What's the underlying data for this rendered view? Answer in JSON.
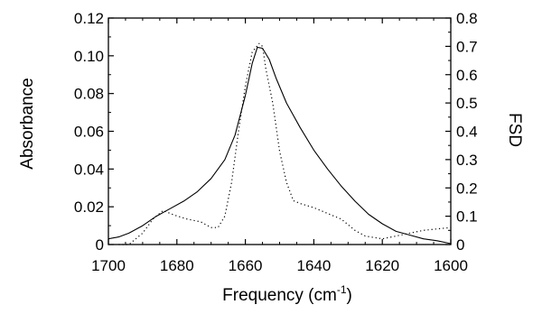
{
  "chart_data": {
    "type": "line",
    "xlabel": "Frequency (cm",
    "xlabel_sup": "-1",
    "xlabel_close": ")",
    "ylabel_left": "Absorbance",
    "ylabel_right": "FSD",
    "xlim": [
      1700,
      1600
    ],
    "ylim_left": [
      0,
      0.12
    ],
    "ylim_right": [
      0,
      0.8
    ],
    "x_ticks": [
      "1700",
      "1680",
      "1660",
      "1640",
      "1620",
      "1600"
    ],
    "x_tick_values": [
      1700,
      1680,
      1660,
      1640,
      1620,
      1600
    ],
    "y_left_ticks": [
      "0",
      "0.02",
      "0.04",
      "0.06",
      "0.08",
      "0.10",
      "0.12"
    ],
    "y_left_tick_values": [
      0,
      0.02,
      0.04,
      0.06,
      0.08,
      0.1,
      0.12
    ],
    "y_right_ticks": [
      "0",
      "0.1",
      "0.2",
      "0.3",
      "0.4",
      "0.5",
      "0.6",
      "0.7",
      "0.8"
    ],
    "y_right_tick_values": [
      0,
      0.1,
      0.2,
      0.3,
      0.4,
      0.5,
      0.6,
      0.7,
      0.8
    ],
    "series": [
      {
        "axis": "left",
        "style": "solid",
        "color": "#000000",
        "x": [
          1700,
          1697,
          1694,
          1690,
          1686,
          1682,
          1678,
          1674,
          1670,
          1666,
          1663,
          1660,
          1658,
          1656.5,
          1655,
          1653,
          1651,
          1648,
          1644,
          1640,
          1636,
          1632,
          1628,
          1624,
          1620,
          1616,
          1612,
          1608,
          1604,
          1600
        ],
        "values": [
          0.003,
          0.004,
          0.006,
          0.01,
          0.015,
          0.019,
          0.023,
          0.028,
          0.035,
          0.045,
          0.058,
          0.079,
          0.096,
          0.1045,
          0.104,
          0.098,
          0.088,
          0.075,
          0.062,
          0.05,
          0.04,
          0.031,
          0.023,
          0.016,
          0.011,
          0.007,
          0.005,
          0.003,
          0.002,
          0.0005
        ]
      },
      {
        "axis": "right",
        "style": "dotted",
        "color": "#000000",
        "x": [
          1697,
          1694,
          1690,
          1687,
          1684,
          1681,
          1677,
          1673,
          1670,
          1668,
          1666,
          1664,
          1662,
          1660,
          1658,
          1656,
          1655,
          1654,
          1652,
          1650,
          1648,
          1646,
          1644,
          1640,
          1636,
          1632,
          1630,
          1628,
          1625,
          1620,
          1616,
          1612,
          1608,
          1604,
          1600
        ],
        "values": [
          0.0,
          0.0,
          0.04,
          0.09,
          0.12,
          0.105,
          0.09,
          0.08,
          0.06,
          0.06,
          0.1,
          0.22,
          0.4,
          0.56,
          0.68,
          0.71,
          0.7,
          0.62,
          0.5,
          0.33,
          0.22,
          0.155,
          0.145,
          0.13,
          0.11,
          0.09,
          0.07,
          0.05,
          0.03,
          0.02,
          0.03,
          0.04,
          0.05,
          0.055,
          0.06
        ]
      }
    ],
    "grid": false,
    "legend": "none"
  }
}
